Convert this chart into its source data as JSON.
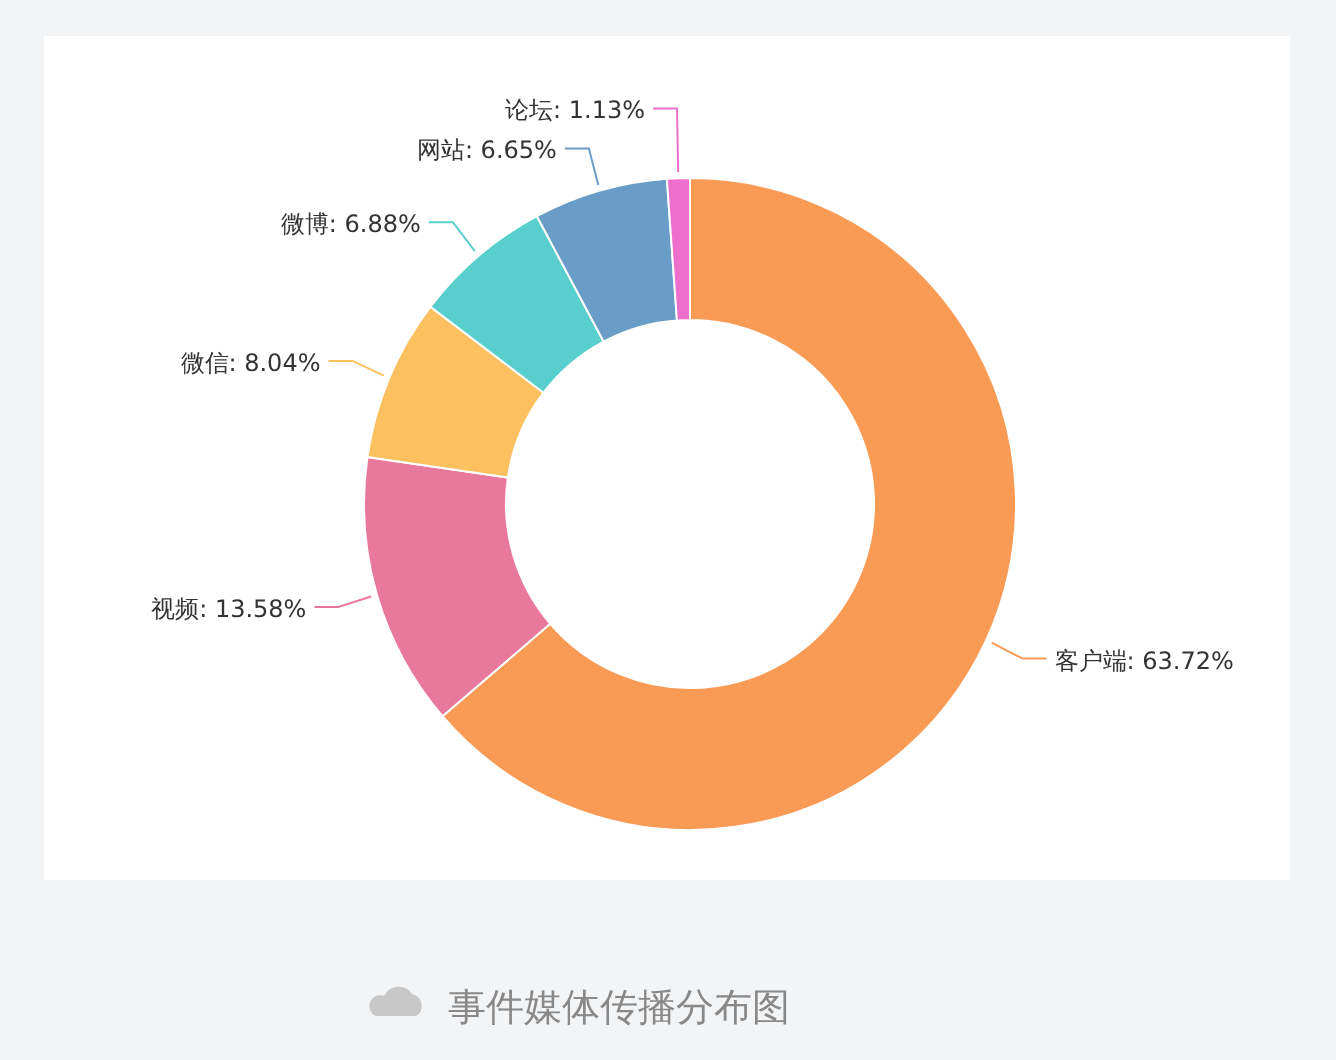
{
  "chart_data": {
    "type": "donut",
    "title": "事件媒体传播分布图",
    "categories": [
      "客户端",
      "视频",
      "微信",
      "微博",
      "网站",
      "论坛"
    ],
    "values": [
      63.72,
      13.58,
      8.04,
      6.88,
      6.65,
      1.13
    ],
    "colors": [
      "#f99a55",
      "#e8799c",
      "#fcc05e",
      "#58cfcc",
      "#6a9cc8",
      "#ee6fcb"
    ],
    "value_labels": [
      ": 63.72%",
      ": 13.58%",
      ": 8.04%",
      ": 6.88%",
      ": 6.65%",
      ": 1.13%"
    ]
  }
}
